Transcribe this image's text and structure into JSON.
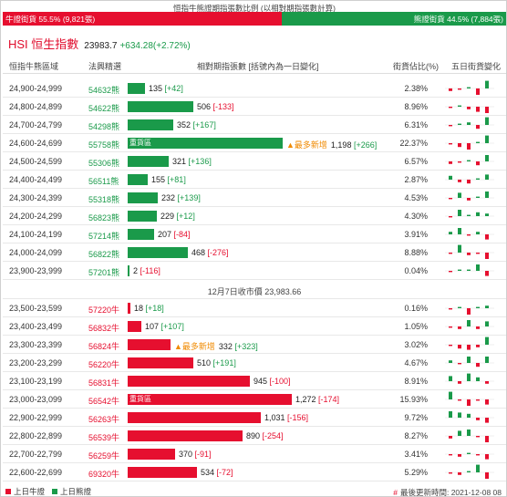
{
  "ratio": {
    "title": "恒指牛熊證期指張數比例 (以相對期指張數計算)",
    "bull_label": "牛證街貨 55.5% (9,821張)",
    "bear_label": "熊證街貨 44.5% (7,884張)",
    "bull_fraction": 0.555
  },
  "index": {
    "name": "HSI 恒生指數",
    "value": "23983.7",
    "change": "+634.28(+2.72%)"
  },
  "headers": {
    "range": "恒指牛熊區域",
    "code": "法興精選",
    "contracts": "相對期指張數 [括號內為一日變化]",
    "pct": "街貨佔比(%)",
    "five_day": "五日街貨變化"
  },
  "bear_rows": [
    {
      "range": "24,900-24,999",
      "code": "54632熊",
      "contracts": 135,
      "contracts_text": "135",
      "change": "[+42]",
      "pct": "2.38%",
      "heavy": "",
      "most_new": "",
      "spark": [
        -2,
        -1,
        1,
        -5,
        6
      ]
    },
    {
      "range": "24,800-24,899",
      "code": "54622熊",
      "contracts": 506,
      "contracts_text": "506",
      "change": "[-133]",
      "pct": "8.96%",
      "heavy": "",
      "most_new": "",
      "spark": [
        -1,
        1,
        -2,
        -4,
        -5
      ]
    },
    {
      "range": "24,700-24,799",
      "code": "54298熊",
      "contracts": 352,
      "contracts_text": "352",
      "change": "[+167]",
      "pct": "6.31%",
      "heavy": "",
      "most_new": "",
      "spark": [
        -1,
        1,
        2,
        -3,
        6
      ]
    },
    {
      "range": "24,600-24,699",
      "code": "55758熊",
      "contracts": 1198,
      "contracts_text": "1,198",
      "change": "[+266]",
      "pct": "22.37%",
      "heavy": "重貨區",
      "most_new": "▲最多新增",
      "spark": [
        -1,
        -3,
        -5,
        1,
        6
      ]
    },
    {
      "range": "24,500-24,599",
      "code": "55306熊",
      "contracts": 321,
      "contracts_text": "321",
      "change": "[+136]",
      "pct": "6.57%",
      "heavy": "",
      "most_new": "",
      "spark": [
        -2,
        -1,
        1,
        -3,
        5
      ]
    },
    {
      "range": "24,400-24,499",
      "code": "56511熊",
      "contracts": 155,
      "contracts_text": "155",
      "change": "[+81]",
      "pct": "2.87%",
      "heavy": "",
      "most_new": "",
      "spark": [
        3,
        -2,
        -3,
        1,
        4
      ]
    },
    {
      "range": "24,300-24,399",
      "code": "55318熊",
      "contracts": 232,
      "contracts_text": "232",
      "change": "[+139]",
      "pct": "4.53%",
      "heavy": "",
      "most_new": "",
      "spark": [
        -1,
        4,
        -2,
        1,
        5
      ]
    },
    {
      "range": "24,200-24,299",
      "code": "56823熊",
      "contracts": 229,
      "contracts_text": "229",
      "change": "[+12]",
      "pct": "4.30%",
      "heavy": "",
      "most_new": "",
      "spark": [
        -1,
        5,
        1,
        3,
        2
      ]
    },
    {
      "range": "24,100-24,199",
      "code": "57214熊",
      "contracts": 207,
      "contracts_text": "207",
      "change": "[-84]",
      "pct": "3.91%",
      "heavy": "",
      "most_new": "",
      "spark": [
        2,
        5,
        -1,
        2,
        -4
      ]
    },
    {
      "range": "24,000-24,099",
      "code": "56822熊",
      "contracts": 468,
      "contracts_text": "468",
      "change": "[-276]",
      "pct": "8.88%",
      "heavy": "",
      "most_new": "",
      "spark": [
        -1,
        6,
        -2,
        -1,
        -5
      ]
    },
    {
      "range": "23,900-23,999",
      "code": "57201熊",
      "contracts": 2,
      "contracts_text": "2",
      "change": "[-116]",
      "pct": "0.04%",
      "heavy": "",
      "most_new": "",
      "spark": [
        -1,
        1,
        1,
        5,
        -4
      ]
    }
  ],
  "mid_label": "12月7日收市價 23,983.66",
  "bull_rows": [
    {
      "range": "23,500-23,599",
      "code": "57220牛",
      "contracts": 18,
      "contracts_text": "18",
      "change": "[+18]",
      "pct": "0.16%",
      "heavy": "",
      "most_new": "",
      "spark": [
        -1,
        1,
        -5,
        1,
        2
      ]
    },
    {
      "range": "23,400-23,499",
      "code": "56832牛",
      "contracts": 107,
      "contracts_text": "107",
      "change": "[+107]",
      "pct": "1.05%",
      "heavy": "",
      "most_new": "",
      "spark": [
        -1,
        -2,
        5,
        -2,
        4
      ]
    },
    {
      "range": "23,300-23,399",
      "code": "56824牛",
      "contracts": 332,
      "contracts_text": "332",
      "change": "[+323]",
      "pct": "3.02%",
      "heavy": "",
      "most_new": "▲最多新增",
      "spark": [
        -1,
        -3,
        -4,
        -2,
        6
      ]
    },
    {
      "range": "23,200-23,299",
      "code": "56220牛",
      "contracts": 510,
      "contracts_text": "510",
      "change": "[+191]",
      "pct": "4.67%",
      "heavy": "",
      "most_new": "",
      "spark": [
        2,
        -1,
        5,
        -3,
        5
      ]
    },
    {
      "range": "23,100-23,199",
      "code": "56831牛",
      "contracts": 945,
      "contracts_text": "945",
      "change": "[-100]",
      "pct": "8.91%",
      "heavy": "",
      "most_new": "",
      "spark": [
        4,
        -2,
        6,
        3,
        -2
      ]
    },
    {
      "range": "23,000-23,099",
      "code": "56542牛",
      "contracts": 1272,
      "contracts_text": "1,272",
      "change": "[-174]",
      "pct": "15.93%",
      "heavy": "重貨區",
      "most_new": "",
      "spark": [
        6,
        -1,
        -5,
        -1,
        -4
      ]
    },
    {
      "range": "22,900-22,999",
      "code": "56263牛",
      "contracts": 1031,
      "contracts_text": "1,031",
      "change": "[-156]",
      "pct": "9.72%",
      "heavy": "",
      "most_new": "",
      "spark": [
        5,
        4,
        3,
        -2,
        -4
      ]
    },
    {
      "range": "22,800-22,899",
      "code": "56539牛",
      "contracts": 890,
      "contracts_text": "890",
      "change": "[-254]",
      "pct": "8.27%",
      "heavy": "",
      "most_new": "",
      "spark": [
        -2,
        4,
        5,
        -1,
        -5
      ]
    },
    {
      "range": "22,700-22,799",
      "code": "56259牛",
      "contracts": 370,
      "contracts_text": "370",
      "change": "[-91]",
      "pct": "3.41%",
      "heavy": "",
      "most_new": "",
      "spark": [
        -1,
        -2,
        1,
        -1,
        -4
      ]
    },
    {
      "range": "22,600-22,699",
      "code": "69320牛",
      "contracts": 534,
      "contracts_text": "534",
      "change": "[-72]",
      "pct": "5.29%",
      "heavy": "",
      "most_new": "",
      "spark": [
        -1,
        -2,
        1,
        6,
        -5
      ]
    }
  ],
  "legend": {
    "bull": "上日牛證",
    "bear": "上日熊證"
  },
  "updated": {
    "marker": "#",
    "text": "最後更新時間: 2021-12-08 08"
  },
  "colors": {
    "bull": "#e60f2f",
    "bear": "#1a9a4a",
    "accent": "#f08a00"
  }
}
